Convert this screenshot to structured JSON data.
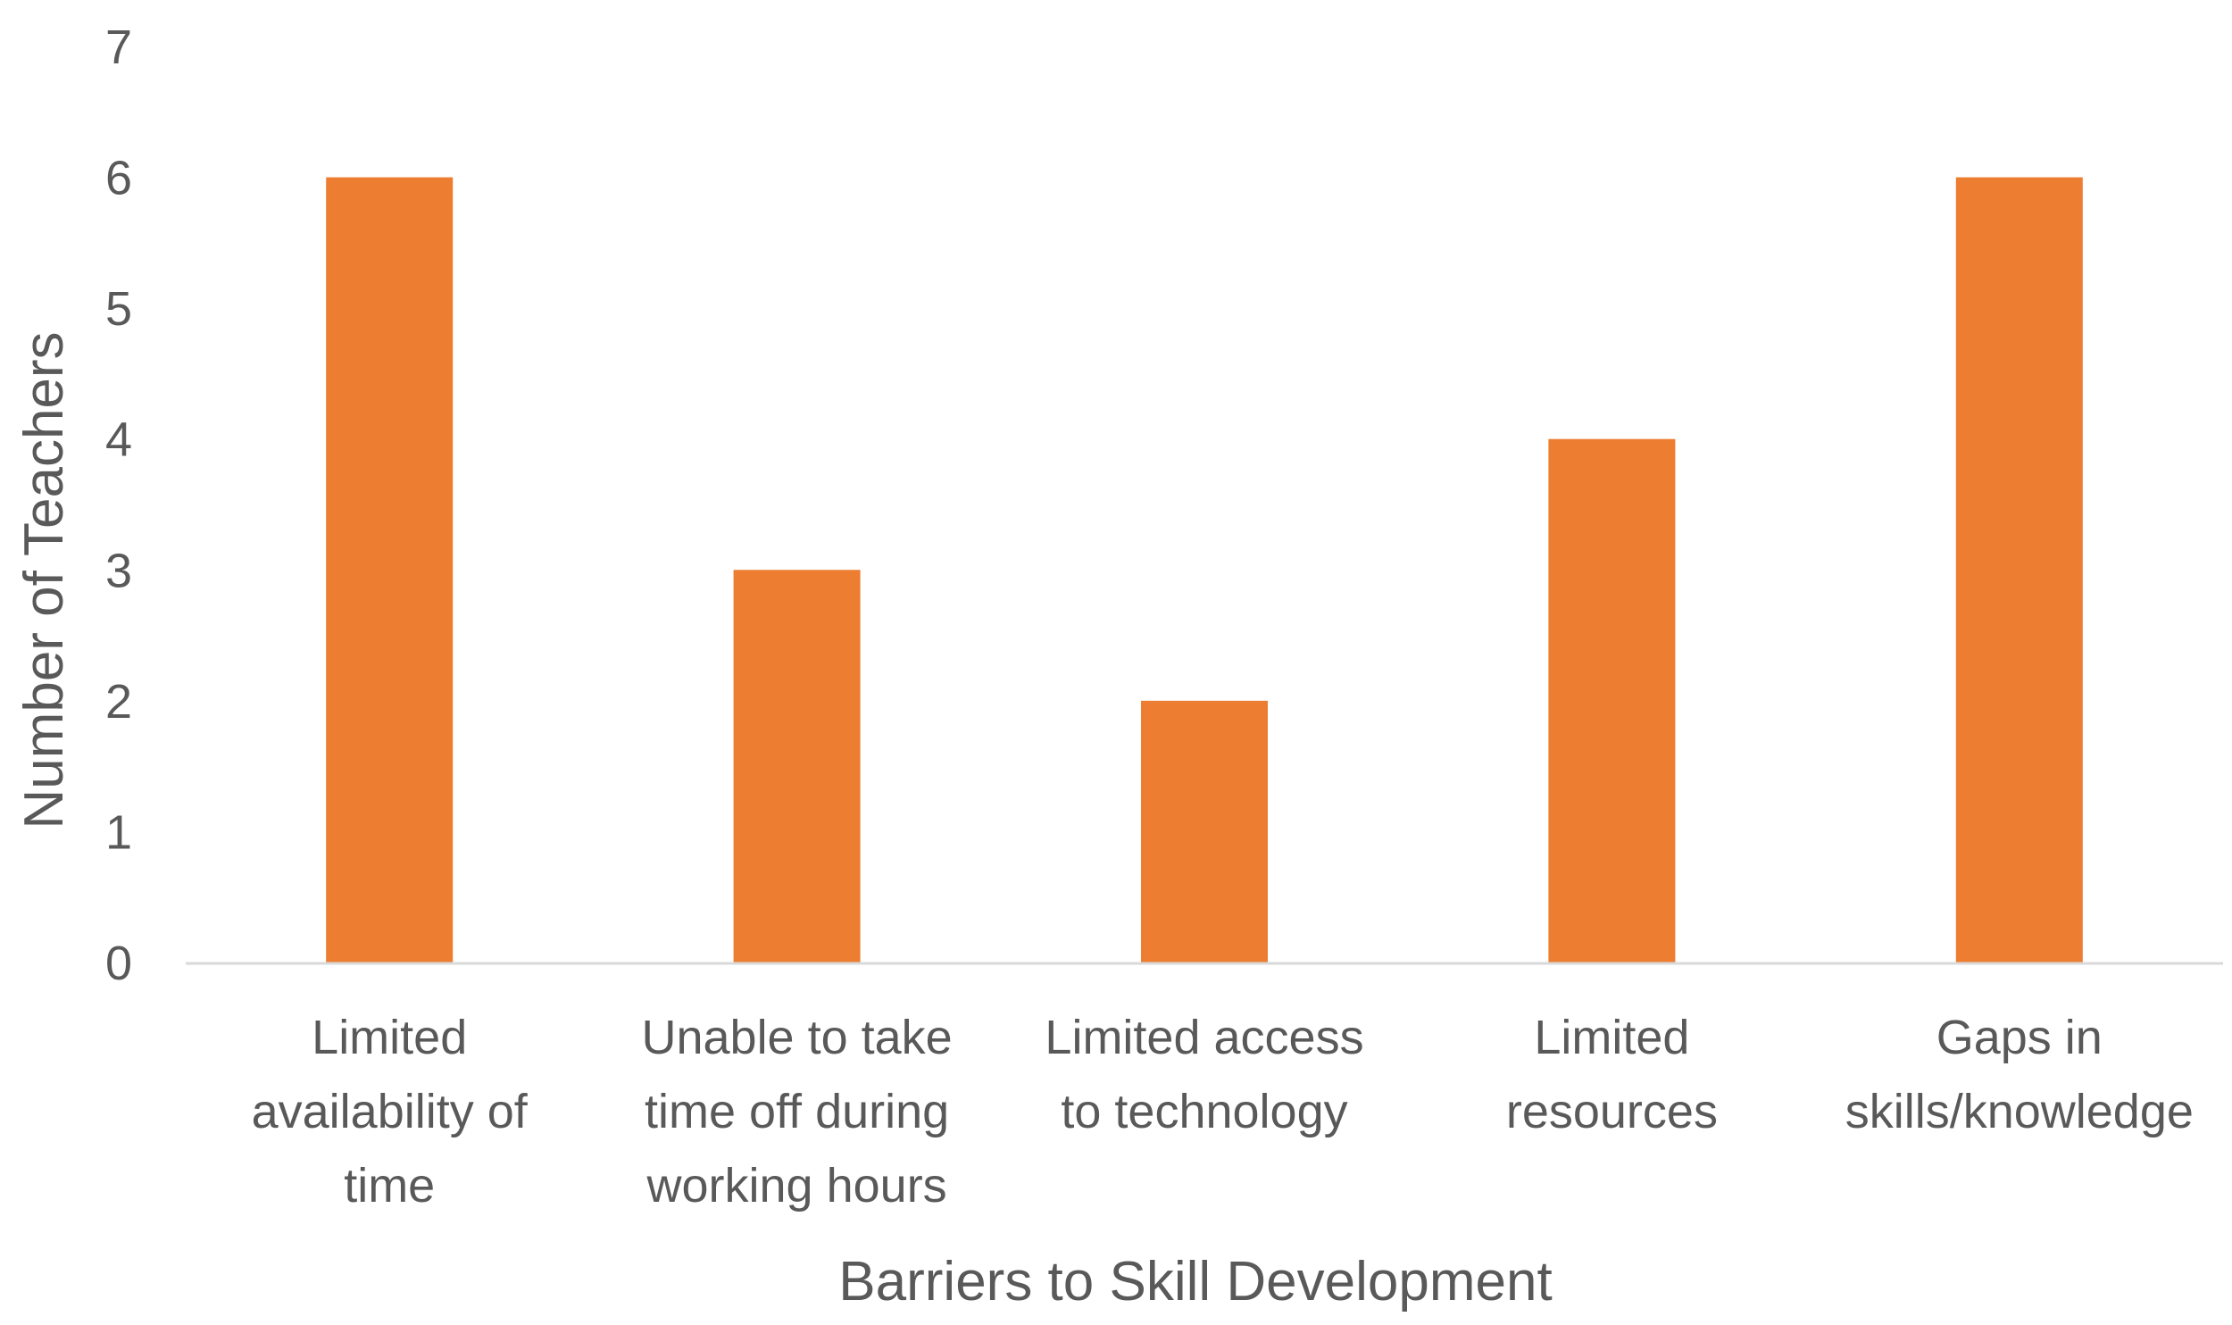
{
  "chart_data": {
    "type": "bar",
    "title": "",
    "xlabel": "Barriers to Skill Development",
    "ylabel": "Number of Teachers",
    "categories": [
      [
        "Limited",
        "availability of",
        "time"
      ],
      [
        "Unable to take",
        "time off during",
        "working hours"
      ],
      [
        "Limited access",
        "to technology"
      ],
      [
        "Limited",
        "resources"
      ],
      [
        "Gaps in",
        "skills/knowledge"
      ]
    ],
    "values": [
      6,
      3,
      2,
      4,
      6
    ],
    "ylim": [
      0,
      7
    ],
    "yticks": [
      0,
      1,
      2,
      3,
      4,
      5,
      6,
      7
    ],
    "grid": false,
    "legend": "none",
    "colors": {
      "bar": "#ED7D31",
      "axis": "#D9D9D9",
      "text": "#595959"
    }
  }
}
